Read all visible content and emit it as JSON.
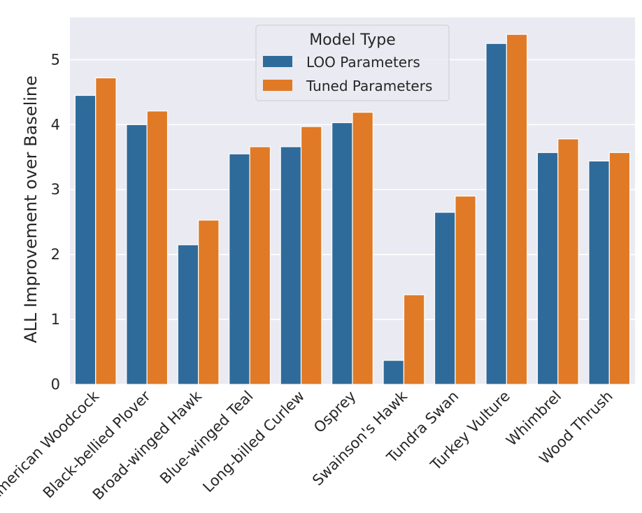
{
  "chart_data": {
    "type": "bar",
    "title": "",
    "xlabel": "",
    "ylabel": "ALL Improvement over Baseline",
    "ylim": [
      0,
      5.65
    ],
    "yticks": [
      0,
      1,
      2,
      3,
      4,
      5
    ],
    "grid": true,
    "legend": {
      "title": "Model Type",
      "placement": "top-center"
    },
    "categories": [
      "American Woodcock",
      "Black-bellied Plover",
      "Broad-winged Hawk",
      "Blue-winged Teal",
      "Long-billed Curlew",
      "Osprey",
      "Swainson's Hawk",
      "Tundra Swan",
      "Turkey Vulture",
      "Whimbrel",
      "Wood Thrush"
    ],
    "series": [
      {
        "name": "LOO Parameters",
        "color": "#2f6b9a",
        "values": [
          4.45,
          4.0,
          2.15,
          3.55,
          3.66,
          4.03,
          0.37,
          2.65,
          5.25,
          3.57,
          3.44
        ]
      },
      {
        "name": "Tuned Parameters",
        "color": "#e07a26",
        "values": [
          4.72,
          4.21,
          2.53,
          3.66,
          3.97,
          4.19,
          1.38,
          2.9,
          5.39,
          3.78,
          3.57
        ]
      }
    ],
    "colors": {
      "background": "#eaeaf2",
      "grid": "#ffffff"
    }
  }
}
